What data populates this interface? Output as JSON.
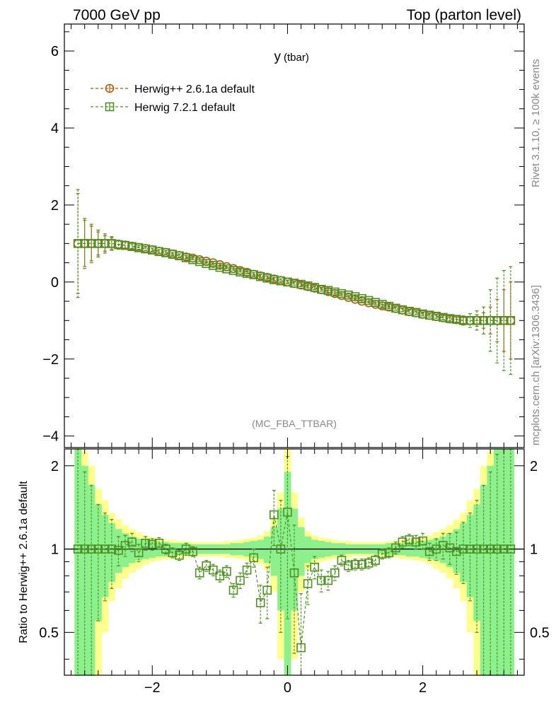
{
  "header": {
    "left": "7000 GeV pp",
    "right": "Top (parton level)"
  },
  "side": {
    "rivet": "Rivet 3.1.10, ≥ 100k events",
    "mcplots": "mcplots.cern.ch [arXiv:1306.3436]"
  },
  "chart_data": [
    {
      "type": "scatter",
      "title": "y",
      "title_sub": "(tbar)",
      "watermark": "(MC_FBA_TTBAR)",
      "xlabel": "",
      "ylabel": "",
      "xlim": [
        -3.3,
        3.5
      ],
      "ylim": [
        -4.3,
        6.7
      ],
      "y_ticks": [
        -4,
        -2,
        0,
        2,
        4,
        6
      ],
      "y_tick_labels": [
        "−4",
        "−2",
        "0",
        "2",
        "4",
        "6"
      ],
      "legend_position": "top-left",
      "series": [
        {
          "name": "Herwig++ 2.6.1a default",
          "color": "#b35806",
          "marker": "circle",
          "x": [
            -3.1,
            -3.0,
            -2.9,
            -2.8,
            -2.7,
            -2.6,
            -2.5,
            -2.4,
            -2.3,
            -2.2,
            -2.1,
            -2.0,
            -1.9,
            -1.8,
            -1.7,
            -1.6,
            -1.5,
            -1.4,
            -1.3,
            -1.2,
            -1.1,
            -1.0,
            -0.9,
            -0.8,
            -0.7,
            -0.6,
            -0.5,
            -0.4,
            -0.3,
            -0.2,
            -0.1,
            0.0,
            0.1,
            0.2,
            0.3,
            0.4,
            0.5,
            0.6,
            0.7,
            0.8,
            0.9,
            1.0,
            1.1,
            1.2,
            1.3,
            1.4,
            1.5,
            1.6,
            1.7,
            1.8,
            1.9,
            2.0,
            2.1,
            2.2,
            2.3,
            2.4,
            2.5,
            2.6,
            2.7,
            2.8,
            2.9,
            3.0,
            3.1,
            3.2,
            3.3
          ],
          "y": [
            1.0,
            1.0,
            1.0,
            1.0,
            1.0,
            1.0,
            0.98,
            0.96,
            0.93,
            0.9,
            0.87,
            0.84,
            0.8,
            0.77,
            0.73,
            0.69,
            0.65,
            0.62,
            0.58,
            0.54,
            0.5,
            0.45,
            0.4,
            0.35,
            0.3,
            0.25,
            0.2,
            0.16,
            0.12,
            0.08,
            0.04,
            0.0,
            -0.04,
            -0.08,
            -0.12,
            -0.16,
            -0.2,
            -0.25,
            -0.3,
            -0.35,
            -0.4,
            -0.45,
            -0.5,
            -0.54,
            -0.58,
            -0.62,
            -0.65,
            -0.69,
            -0.73,
            -0.77,
            -0.8,
            -0.84,
            -0.87,
            -0.9,
            -0.93,
            -0.96,
            -0.98,
            -1.0,
            -1.0,
            -1.0,
            -1.0,
            -1.0,
            -1.0,
            -1.0,
            -1.0
          ],
          "err": [
            1.3,
            0.6,
            0.45,
            0.3,
            0.2,
            0.15,
            0.1,
            0.08,
            0.06,
            0.05,
            0.05,
            0.04,
            0.04,
            0.04,
            0.04,
            0.04,
            0.04,
            0.04,
            0.04,
            0.04,
            0.04,
            0.04,
            0.04,
            0.04,
            0.04,
            0.04,
            0.04,
            0.04,
            0.04,
            0.04,
            0.04,
            0.04,
            0.04,
            0.04,
            0.04,
            0.04,
            0.04,
            0.04,
            0.04,
            0.04,
            0.04,
            0.04,
            0.04,
            0.04,
            0.04,
            0.04,
            0.04,
            0.04,
            0.04,
            0.04,
            0.04,
            0.04,
            0.04,
            0.04,
            0.05,
            0.05,
            0.06,
            0.08,
            0.1,
            0.15,
            0.2,
            0.35,
            0.55,
            0.8,
            1.0
          ]
        },
        {
          "name": "Herwig 7.2.1 default",
          "color": "#4d9221",
          "marker": "square",
          "x": [
            -3.1,
            -3.0,
            -2.9,
            -2.8,
            -2.7,
            -2.6,
            -2.5,
            -2.4,
            -2.3,
            -2.2,
            -2.1,
            -2.0,
            -1.9,
            -1.8,
            -1.7,
            -1.6,
            -1.5,
            -1.4,
            -1.3,
            -1.2,
            -1.1,
            -1.0,
            -0.9,
            -0.8,
            -0.7,
            -0.6,
            -0.5,
            -0.4,
            -0.3,
            -0.2,
            -0.1,
            0.0,
            0.1,
            0.2,
            0.3,
            0.4,
            0.5,
            0.6,
            0.7,
            0.8,
            0.9,
            1.0,
            1.1,
            1.2,
            1.3,
            1.4,
            1.5,
            1.6,
            1.7,
            1.8,
            1.9,
            2.0,
            2.1,
            2.2,
            2.3,
            2.4,
            2.5,
            2.6,
            2.7,
            2.8,
            2.9,
            3.0,
            3.1,
            3.2,
            3.3
          ],
          "y": [
            1.0,
            1.0,
            1.0,
            1.0,
            1.0,
            1.0,
            0.97,
            0.95,
            0.92,
            0.89,
            0.86,
            0.83,
            0.79,
            0.76,
            0.72,
            0.68,
            0.63,
            0.58,
            0.53,
            0.48,
            0.43,
            0.38,
            0.34,
            0.3,
            0.26,
            0.22,
            0.19,
            0.14,
            0.1,
            0.06,
            0.03,
            0.0,
            -0.03,
            -0.06,
            -0.1,
            -0.14,
            -0.19,
            -0.22,
            -0.26,
            -0.3,
            -0.34,
            -0.38,
            -0.43,
            -0.48,
            -0.53,
            -0.58,
            -0.63,
            -0.68,
            -0.72,
            -0.76,
            -0.79,
            -0.83,
            -0.86,
            -0.89,
            -0.92,
            -0.95,
            -0.97,
            -1.0,
            -1.0,
            -1.0,
            -1.0,
            -1.0,
            -1.0,
            -1.0,
            -1.0
          ],
          "err": [
            1.4,
            0.65,
            0.5,
            0.35,
            0.25,
            0.18,
            0.12,
            0.09,
            0.07,
            0.06,
            0.05,
            0.05,
            0.05,
            0.05,
            0.05,
            0.05,
            0.05,
            0.05,
            0.05,
            0.05,
            0.05,
            0.05,
            0.05,
            0.05,
            0.05,
            0.05,
            0.05,
            0.05,
            0.05,
            0.05,
            0.05,
            0.05,
            0.05,
            0.05,
            0.05,
            0.05,
            0.05,
            0.05,
            0.05,
            0.05,
            0.05,
            0.05,
            0.05,
            0.05,
            0.05,
            0.05,
            0.05,
            0.05,
            0.05,
            0.05,
            0.05,
            0.05,
            0.05,
            0.05,
            0.06,
            0.07,
            0.09,
            0.12,
            0.18,
            0.25,
            0.35,
            0.8,
            1.1,
            1.3,
            1.4
          ]
        }
      ]
    },
    {
      "type": "scatter",
      "ylabel": "Ratio to Herwig++ 2.6.1a default",
      "xlim": [
        -3.3,
        3.5
      ],
      "ylim": [
        0.35,
        2.3
      ],
      "y_ticks": [
        0.5,
        1,
        2
      ],
      "y_tick_labels": [
        "0.5",
        "1",
        "2"
      ],
      "x_ticks": [
        -2,
        0,
        2
      ],
      "x_tick_labels": [
        "−2",
        "0",
        "2"
      ],
      "bands": {
        "yellow_color": "#ffff8c",
        "green_color": "#8cf08c",
        "x": [
          -3.1,
          -3.0,
          -2.9,
          -2.8,
          -2.7,
          -2.6,
          -2.5,
          -2.4,
          -2.3,
          -2.2,
          -2.1,
          -2.0,
          -1.9,
          -1.8,
          -1.7,
          -1.6,
          -1.5,
          -1.4,
          -1.3,
          -1.2,
          -1.1,
          -1.0,
          -0.9,
          -0.8,
          -0.7,
          -0.6,
          -0.5,
          -0.4,
          -0.3,
          -0.2,
          -0.1,
          0.0,
          0.1,
          0.2,
          0.3,
          0.4,
          0.5,
          0.6,
          0.7,
          0.8,
          0.9,
          1.0,
          1.1,
          1.2,
          1.3,
          1.4,
          1.5,
          1.6,
          1.7,
          1.8,
          1.9,
          2.0,
          2.1,
          2.2,
          2.3,
          2.4,
          2.5,
          2.6,
          2.7,
          2.8,
          2.9,
          3.0,
          3.1,
          3.2,
          3.3
        ],
        "yellow": [
          1.4,
          1.25,
          1.0,
          0.65,
          0.5,
          0.35,
          0.28,
          0.22,
          0.18,
          0.15,
          0.12,
          0.1,
          0.09,
          0.08,
          0.08,
          0.07,
          0.07,
          0.06,
          0.06,
          0.06,
          0.06,
          0.06,
          0.07,
          0.07,
          0.08,
          0.09,
          0.1,
          0.12,
          0.16,
          0.3,
          0.6,
          1.4,
          0.6,
          0.3,
          0.16,
          0.12,
          0.1,
          0.09,
          0.08,
          0.07,
          0.07,
          0.06,
          0.06,
          0.06,
          0.06,
          0.06,
          0.07,
          0.07,
          0.08,
          0.08,
          0.09,
          0.1,
          0.12,
          0.15,
          0.18,
          0.22,
          0.28,
          0.35,
          0.5,
          0.65,
          1.0,
          1.25,
          1.4,
          1.4,
          1.4
        ],
        "green": [
          1.3,
          1.0,
          0.7,
          0.45,
          0.33,
          0.24,
          0.18,
          0.14,
          0.11,
          0.09,
          0.08,
          0.07,
          0.06,
          0.06,
          0.05,
          0.05,
          0.05,
          0.04,
          0.04,
          0.04,
          0.04,
          0.04,
          0.04,
          0.05,
          0.05,
          0.06,
          0.07,
          0.08,
          0.11,
          0.2,
          0.4,
          0.9,
          0.4,
          0.2,
          0.11,
          0.08,
          0.07,
          0.06,
          0.05,
          0.05,
          0.04,
          0.04,
          0.04,
          0.04,
          0.04,
          0.04,
          0.05,
          0.05,
          0.05,
          0.06,
          0.06,
          0.07,
          0.08,
          0.09,
          0.11,
          0.14,
          0.18,
          0.24,
          0.33,
          0.45,
          0.7,
          1.0,
          1.3,
          1.3,
          1.3
        ]
      },
      "series": [
        {
          "name": "Herwig 7.2.1 default",
          "color": "#4d9221",
          "marker": "square",
          "x": [
            -3.1,
            -3.0,
            -2.9,
            -2.8,
            -2.7,
            -2.6,
            -2.5,
            -2.4,
            -2.3,
            -2.2,
            -2.1,
            -2.0,
            -1.9,
            -1.8,
            -1.7,
            -1.6,
            -1.5,
            -1.4,
            -1.3,
            -1.2,
            -1.1,
            -1.0,
            -0.9,
            -0.8,
            -0.7,
            -0.6,
            -0.5,
            -0.4,
            -0.3,
            -0.2,
            -0.1,
            0.0,
            0.1,
            0.2,
            0.3,
            0.4,
            0.5,
            0.6,
            0.7,
            0.8,
            0.9,
            1.0,
            1.1,
            1.2,
            1.3,
            1.4,
            1.5,
            1.6,
            1.7,
            1.8,
            1.9,
            2.0,
            2.1,
            2.2,
            2.3,
            2.4,
            2.5,
            2.6,
            2.7,
            2.8,
            2.9,
            3.0,
            3.1,
            3.2,
            3.3
          ],
          "y": [
            1.0,
            1.0,
            1.0,
            1.0,
            1.0,
            1.0,
            0.99,
            1.03,
            1.06,
            0.97,
            1.05,
            1.04,
            1.05,
            1.0,
            0.97,
            0.95,
            1.0,
            0.98,
            0.82,
            0.87,
            0.84,
            0.8,
            0.83,
            0.71,
            0.77,
            0.84,
            0.93,
            0.64,
            0.71,
            1.33,
            1.0,
            1.36,
            0.82,
            0.44,
            0.75,
            0.86,
            0.77,
            0.77,
            0.82,
            0.91,
            0.87,
            0.88,
            0.88,
            0.89,
            0.91,
            0.96,
            0.97,
            1.01,
            1.06,
            1.08,
            1.06,
            1.07,
            0.98,
            1.0,
            1.03,
            1.01,
            0.98,
            1.0,
            1.0,
            1.0,
            1.0,
            1.0,
            1.0,
            1.0,
            1.0
          ],
          "err": [
            1.3,
            0.9,
            0.7,
            0.45,
            0.35,
            0.28,
            0.12,
            0.09,
            0.08,
            0.07,
            0.06,
            0.05,
            0.05,
            0.04,
            0.04,
            0.04,
            0.05,
            0.04,
            0.04,
            0.04,
            0.04,
            0.04,
            0.04,
            0.04,
            0.05,
            0.05,
            0.07,
            0.1,
            0.15,
            0.3,
            0.5,
            0.8,
            0.4,
            0.25,
            0.12,
            0.08,
            0.07,
            0.06,
            0.05,
            0.04,
            0.04,
            0.04,
            0.04,
            0.04,
            0.04,
            0.04,
            0.04,
            0.05,
            0.05,
            0.05,
            0.06,
            0.07,
            0.07,
            0.09,
            0.11,
            0.13,
            0.17,
            0.25,
            0.35,
            0.5,
            0.7,
            0.9,
            1.2,
            1.3,
            1.3
          ]
        }
      ]
    }
  ]
}
